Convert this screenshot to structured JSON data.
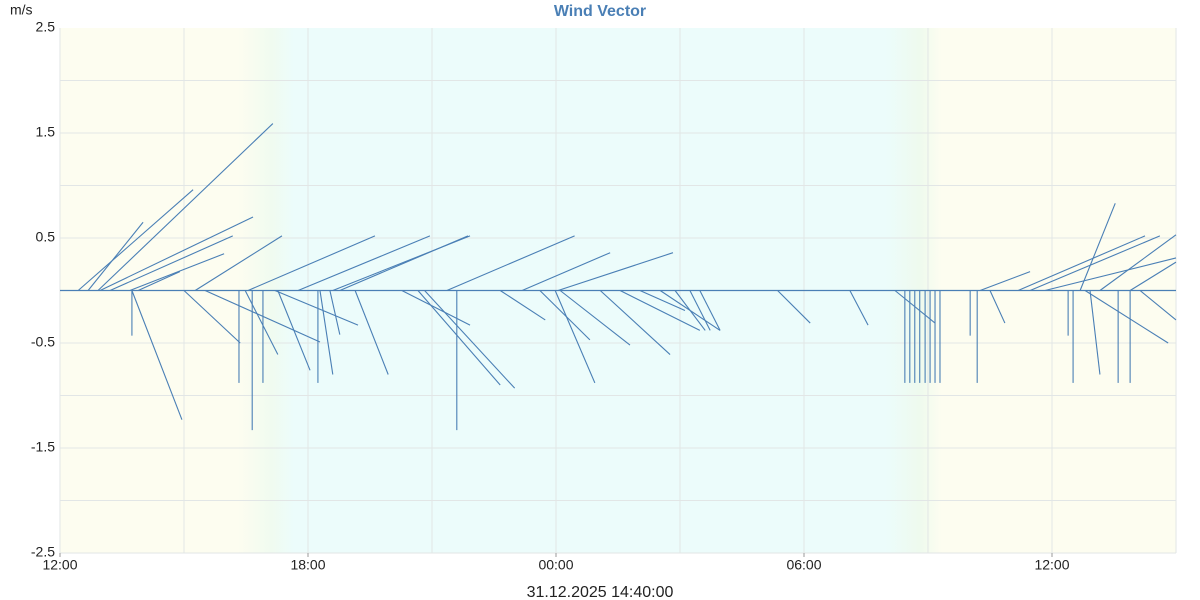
{
  "chart_data": {
    "type": "vector",
    "title": "Wind Vector",
    "y_label": "m/s",
    "x_label": "31.12.2025 14:40:00",
    "color": "#4a7fb5",
    "xlim": [
      0,
      27
    ],
    "xticks": [
      {
        "value": 0,
        "label": "12:00"
      },
      {
        "value": 6,
        "label": "18:00"
      },
      {
        "value": 12,
        "label": "00:00"
      },
      {
        "value": 18,
        "label": "06:00"
      },
      {
        "value": 24,
        "label": "12:00"
      }
    ],
    "xgrid": [
      3,
      6,
      9,
      12,
      15,
      18,
      21,
      24,
      27
    ],
    "ylim": [
      -2.5,
      2.5
    ],
    "yticks": [
      2.5,
      1.5,
      0.5,
      -0.5,
      -1.5,
      -2.5
    ],
    "ygrid": [
      2,
      1.5,
      1,
      0.5,
      0,
      -0.5,
      -1,
      -1.5,
      -2
    ],
    "grid": true,
    "vectors": {
      "t": [
        0.68,
        0.44,
        0.92,
        0.97,
        1.21,
        1.69,
        1.74,
        1.74,
        1.89,
        3.0,
        3.27,
        3.51,
        4.33,
        4.65,
        4.91,
        4.48,
        4.55,
        5.2,
        5.27,
        5.76,
        6.24,
        6.29,
        6.6,
        6.77,
        6.53,
        7.14,
        8.27,
        8.66,
        8.82,
        9.6,
        9.36,
        10.65,
        11.18,
        11.61,
        11.98,
        12.05,
        12.1,
        13.07,
        13.55,
        14.03,
        14.52,
        14.88,
        15.24,
        15.48,
        17.36,
        19.11,
        20.2,
        20.44,
        20.56,
        20.68,
        20.8,
        20.93,
        21.05,
        21.17,
        21.29,
        22.02,
        22.19,
        22.26,
        22.5,
        23.18,
        23.47,
        23.83,
        24.68,
        24.39,
        24.51,
        24.92,
        25.6,
        25.89,
        24.8,
        25.89,
        26.13,
        25.16
      ],
      "t_end": [
        2.01,
        3.22,
        5.15,
        4.67,
        4.18,
        3.97,
        1.74,
        2.95,
        2.9,
        4.36,
        5.37,
        6.29,
        4.33,
        4.65,
        4.91,
        5.27,
        7.62,
        7.21,
        6.05,
        8.95,
        6.24,
        6.6,
        9.92,
        9.87,
        6.77,
        7.94,
        9.92,
        10.65,
        11.0,
        9.6,
        12.45,
        11.74,
        13.31,
        12.82,
        12.94,
        14.83,
        13.79,
        14.76,
        15.48,
        15.12,
        15.97,
        15.61,
        15.73,
        15.97,
        18.15,
        19.55,
        21.17,
        20.44,
        20.56,
        20.68,
        20.8,
        20.93,
        21.05,
        21.17,
        21.29,
        22.02,
        22.19,
        23.47,
        22.86,
        26.25,
        26.61,
        27.0,
        25.53,
        24.39,
        24.51,
        25.16,
        25.6,
        25.89,
        26.81,
        27.0,
        27.0,
        27.0
      ],
      "v_end": [
        0.65,
        0.96,
        1.59,
        0.7,
        0.52,
        0.35,
        -0.43,
        -1.23,
        0.18,
        -0.5,
        0.52,
        -0.49,
        -0.88,
        -1.33,
        -0.88,
        -0.61,
        0.52,
        -0.33,
        -0.76,
        0.52,
        -0.88,
        -0.8,
        0.52,
        0.52,
        -0.42,
        -0.8,
        -0.33,
        -0.9,
        -0.93,
        -1.33,
        0.52,
        -0.28,
        0.36,
        -0.47,
        -0.88,
        0.36,
        -0.52,
        -0.61,
        -0.38,
        -0.19,
        -0.38,
        -0.38,
        -0.38,
        -0.38,
        -0.31,
        -0.33,
        -0.31,
        -0.88,
        -0.88,
        -0.88,
        -0.88,
        -0.88,
        -0.88,
        -0.88,
        -0.88,
        -0.43,
        -0.88,
        0.18,
        -0.31,
        0.52,
        0.52,
        0.31,
        0.83,
        -0.43,
        -0.88,
        -0.8,
        -0.88,
        -0.88,
        -0.5,
        0.27,
        -0.28,
        0.53
      ]
    }
  }
}
